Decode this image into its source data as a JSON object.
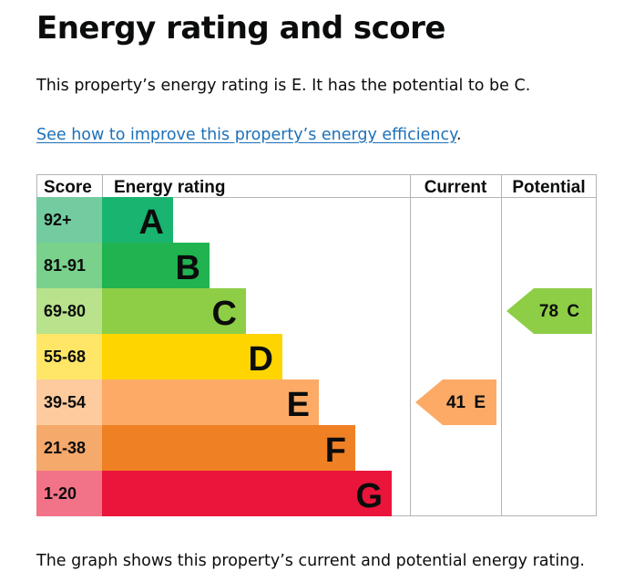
{
  "page": {
    "title": "Energy rating and score",
    "summary": "This property’s energy rating is E. It has the potential to be C.",
    "link_text": "See how to improve this property’s energy efficiency",
    "link_suffix": ".",
    "footer": "The graph shows this property’s current and potential energy rating."
  },
  "chart_data": {
    "type": "bar",
    "headers": {
      "score": "Score",
      "rating": "Energy rating",
      "current": "Current",
      "potential": "Potential"
    },
    "bands": [
      {
        "letter": "A",
        "range": "92+",
        "bar_color": "#19b46f",
        "score_bg": "#73cba0"
      },
      {
        "letter": "B",
        "range": "81-91",
        "bar_color": "#20b350",
        "score_bg": "#79d18c"
      },
      {
        "letter": "C",
        "range": "69-80",
        "bar_color": "#8dce46",
        "score_bg": "#b8e28b"
      },
      {
        "letter": "D",
        "range": "55-68",
        "bar_color": "#ffd500",
        "score_bg": "#ffe667"
      },
      {
        "letter": "E",
        "range": "39-54",
        "bar_color": "#fcaa65",
        "score_bg": "#fdcb9e"
      },
      {
        "letter": "F",
        "range": "21-38",
        "bar_color": "#ef8023",
        "score_bg": "#f5a96b"
      },
      {
        "letter": "G",
        "range": "1-20",
        "bar_color": "#e9153b",
        "score_bg": "#f27387"
      }
    ],
    "current": {
      "score": 41,
      "letter": "E",
      "label": "41 E",
      "color": "#fcaa65"
    },
    "potential": {
      "score": 78,
      "letter": "C",
      "label": "78 C",
      "color": "#8dce46"
    }
  }
}
